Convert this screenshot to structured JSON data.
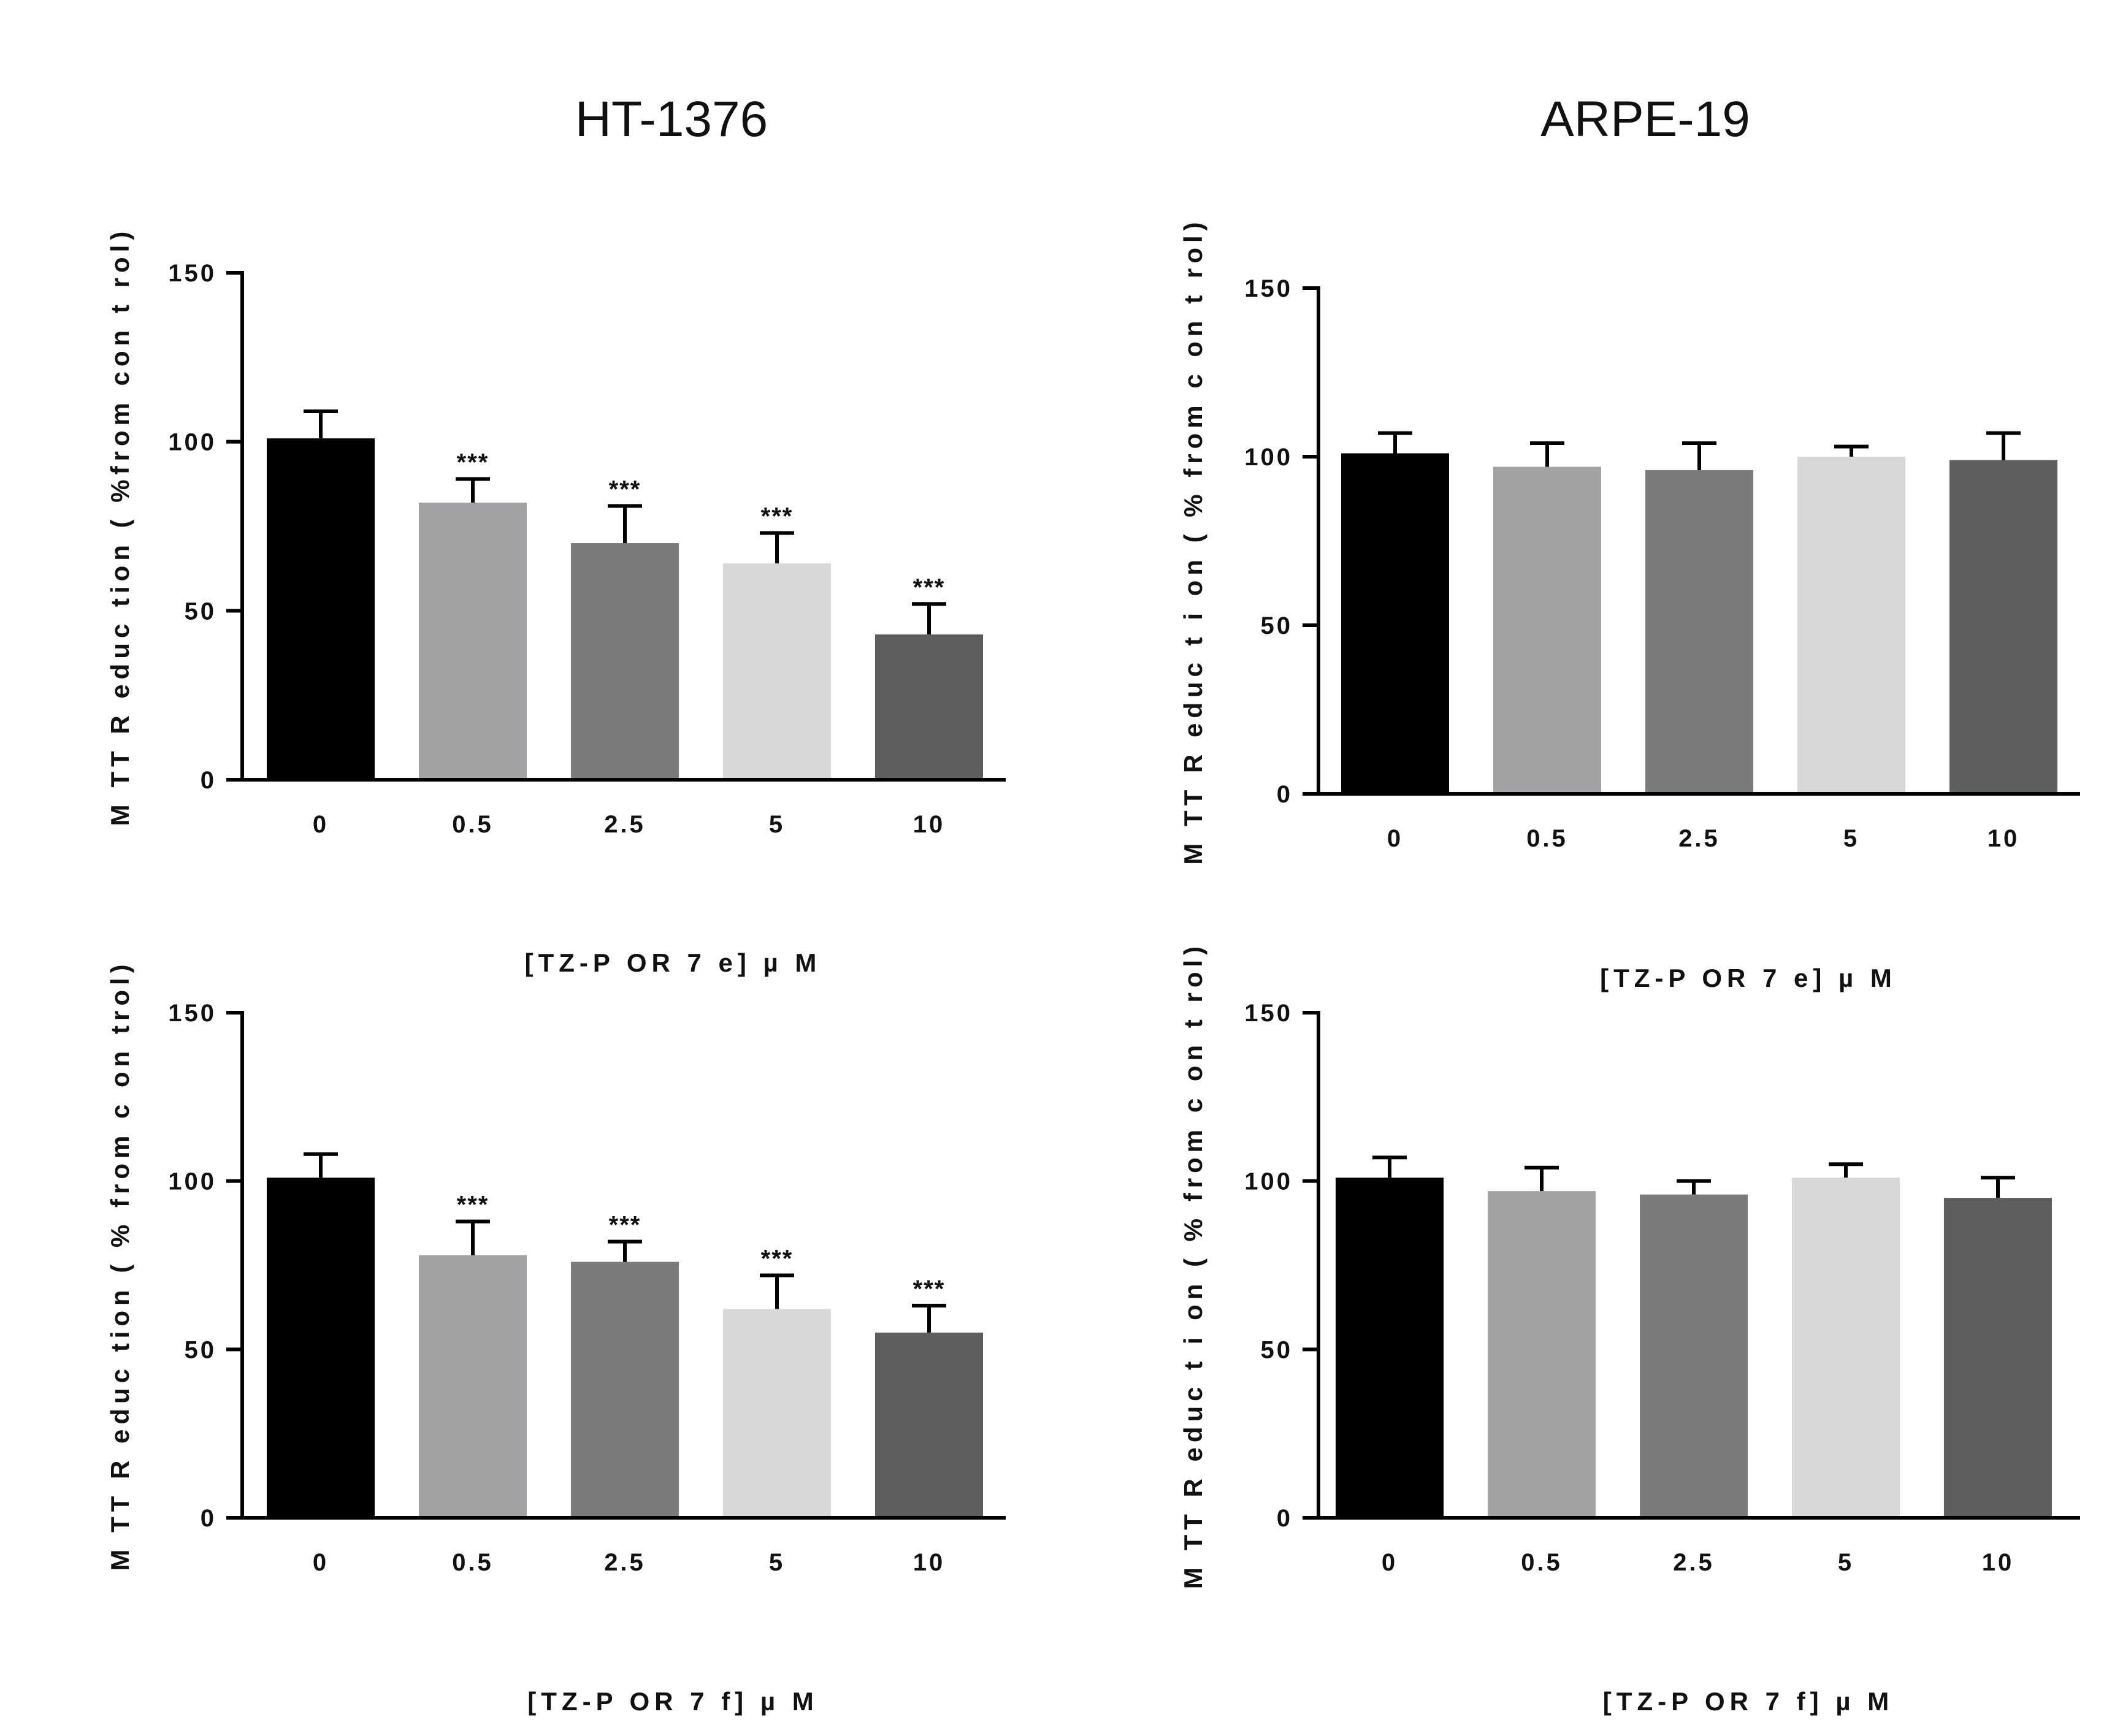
{
  "column_titles": [
    "HT-1376",
    "ARPE-19"
  ],
  "chart_data": [
    {
      "type": "bar",
      "column": "HT-1376",
      "categories": [
        "0",
        "0.5",
        "2.5",
        "5",
        "10"
      ],
      "values": [
        101,
        82,
        70,
        64,
        43
      ],
      "errors": [
        8,
        7,
        11,
        9,
        9
      ],
      "significance": [
        "",
        "***",
        "***",
        "***",
        "***"
      ],
      "colors": [
        "#000000",
        "#a2a2a4",
        "#7a7c7b",
        "#d8d8d8",
        "#5d5f5e"
      ],
      "ylim": [
        0,
        150
      ],
      "yticks": [
        0,
        50,
        100,
        150
      ],
      "ylabel": "M TT  R educ tion  ( %from  con t rol)",
      "xlabel": "[TZ-P OR  7 e]     µ M",
      "grid": false
    },
    {
      "type": "bar",
      "column": "ARPE-19",
      "categories": [
        "0",
        "0.5",
        "2.5",
        "5",
        "10"
      ],
      "values": [
        101,
        97,
        96,
        100,
        99
      ],
      "errors": [
        6,
        7,
        8,
        3,
        8
      ],
      "significance": [
        "",
        "",
        "",
        "",
        ""
      ],
      "colors": [
        "#000000",
        "#a2a2a4",
        "#7a7c7b",
        "#d8d8d8",
        "#5d5f5e"
      ],
      "ylim": [
        0,
        150
      ],
      "yticks": [
        0,
        50,
        100,
        150
      ],
      "ylabel": "M TT  R educ t i on  ( %  from  c on t rol)",
      "xlabel": "[TZ-P OR  7 e]     µ M",
      "grid": false
    },
    {
      "type": "bar",
      "column": "HT-1376",
      "categories": [
        "0",
        "0.5",
        "2.5",
        "5",
        "10"
      ],
      "values": [
        101,
        78,
        76,
        62,
        55
      ],
      "errors": [
        7,
        10,
        6,
        10,
        8
      ],
      "significance": [
        "",
        "***",
        "***",
        "***",
        "***"
      ],
      "colors": [
        "#000000",
        "#a2a2a4",
        "#7a7c7b",
        "#d8d8d8",
        "#5d5f5e"
      ],
      "ylim": [
        0,
        150
      ],
      "yticks": [
        0,
        50,
        100,
        150
      ],
      "ylabel": "M TT  R educ tion  ( %  from  c on trol)",
      "xlabel": "[TZ-P OR  7 f]     µ M",
      "grid": false
    },
    {
      "type": "bar",
      "column": "ARPE-19",
      "categories": [
        "0",
        "0.5",
        "2.5",
        "5",
        "10"
      ],
      "values": [
        101,
        97,
        96,
        101,
        95
      ],
      "errors": [
        6,
        7,
        4,
        4,
        6
      ],
      "significance": [
        "",
        "",
        "",
        "",
        ""
      ],
      "colors": [
        "#000000",
        "#a2a2a4",
        "#7a7c7b",
        "#d8d8d8",
        "#5d5f5e"
      ],
      "ylim": [
        0,
        150
      ],
      "yticks": [
        0,
        50,
        100,
        150
      ],
      "ylabel": "M TT  R educ t i on  ( %  from  c on t rol)",
      "xlabel": "[TZ-P OR  7 f]     µ M",
      "grid": false
    }
  ]
}
